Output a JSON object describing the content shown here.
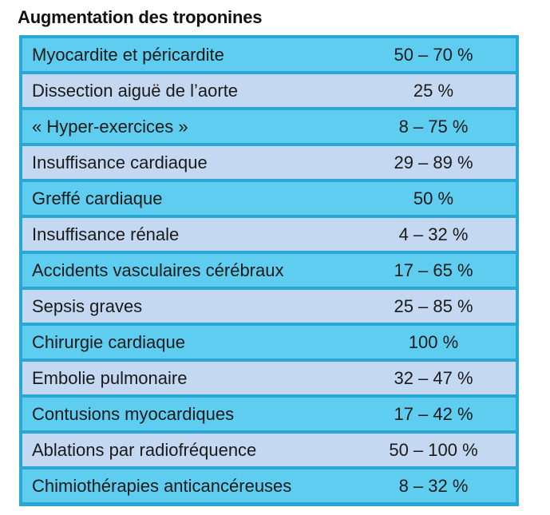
{
  "title": "Augmentation des troponines",
  "colors": {
    "border": "#29a8d6",
    "row_cyan": "#5ecdf0",
    "row_lavender": "#c4d8f1"
  },
  "rows": [
    {
      "condition": "Myocardite et péricardite",
      "value": "50 – 70 %"
    },
    {
      "condition": "Dissection aiguë de l’aorte",
      "value": "25 %"
    },
    {
      "condition": "« Hyper-exercices »",
      "value": "8 – 75 %"
    },
    {
      "condition": "Insuffisance cardiaque",
      "value": "29 – 89 %"
    },
    {
      "condition": "Greffé cardiaque",
      "value": "50 %"
    },
    {
      "condition": "Insuffisance rénale",
      "value": "4 – 32 %"
    },
    {
      "condition": "Accidents vasculaires cérébraux",
      "value": "17 – 65 %"
    },
    {
      "condition": "Sepsis graves",
      "value": "25 – 85 %"
    },
    {
      "condition": "Chirurgie cardiaque",
      "value": "100 %"
    },
    {
      "condition": "Embolie pulmonaire",
      "value": "32 – 47 %"
    },
    {
      "condition": "Contusions myocardiques",
      "value": "17 – 42 %"
    },
    {
      "condition": "Ablations par radiofréquence",
      "value": "50 – 100 %"
    },
    {
      "condition": "Chimiothérapies anticancéreuses",
      "value": "8 – 32 %"
    }
  ]
}
